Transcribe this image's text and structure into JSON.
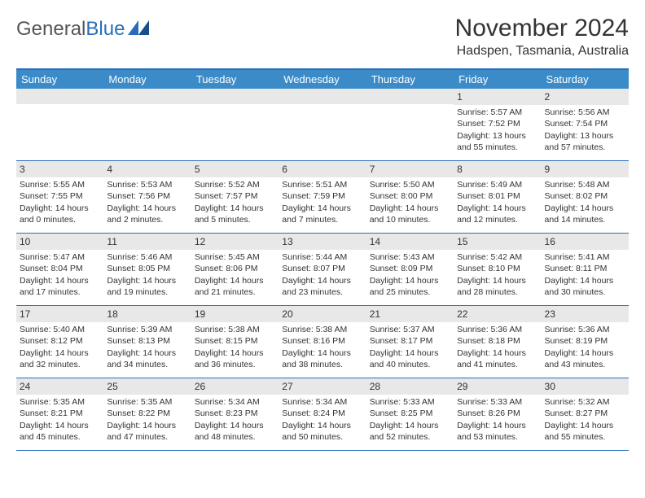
{
  "logo": {
    "word1": "General",
    "word2": "Blue"
  },
  "title": "November 2024",
  "location": "Hadspen, Tasmania, Australia",
  "colors": {
    "header_bar": "#3b8bc9",
    "border": "#2a6ebb",
    "daynum_bg": "#e8e8e8",
    "text": "#333333"
  },
  "weekdays": [
    "Sunday",
    "Monday",
    "Tuesday",
    "Wednesday",
    "Thursday",
    "Friday",
    "Saturday"
  ],
  "weeks": [
    [
      {
        "empty": true
      },
      {
        "empty": true
      },
      {
        "empty": true
      },
      {
        "empty": true
      },
      {
        "empty": true
      },
      {
        "day": "1",
        "sunrise": "5:57 AM",
        "sunset": "7:52 PM",
        "daylight": "13 hours and 55 minutes."
      },
      {
        "day": "2",
        "sunrise": "5:56 AM",
        "sunset": "7:54 PM",
        "daylight": "13 hours and 57 minutes."
      }
    ],
    [
      {
        "day": "3",
        "sunrise": "5:55 AM",
        "sunset": "7:55 PM",
        "daylight": "14 hours and 0 minutes."
      },
      {
        "day": "4",
        "sunrise": "5:53 AM",
        "sunset": "7:56 PM",
        "daylight": "14 hours and 2 minutes."
      },
      {
        "day": "5",
        "sunrise": "5:52 AM",
        "sunset": "7:57 PM",
        "daylight": "14 hours and 5 minutes."
      },
      {
        "day": "6",
        "sunrise": "5:51 AM",
        "sunset": "7:59 PM",
        "daylight": "14 hours and 7 minutes."
      },
      {
        "day": "7",
        "sunrise": "5:50 AM",
        "sunset": "8:00 PM",
        "daylight": "14 hours and 10 minutes."
      },
      {
        "day": "8",
        "sunrise": "5:49 AM",
        "sunset": "8:01 PM",
        "daylight": "14 hours and 12 minutes."
      },
      {
        "day": "9",
        "sunrise": "5:48 AM",
        "sunset": "8:02 PM",
        "daylight": "14 hours and 14 minutes."
      }
    ],
    [
      {
        "day": "10",
        "sunrise": "5:47 AM",
        "sunset": "8:04 PM",
        "daylight": "14 hours and 17 minutes."
      },
      {
        "day": "11",
        "sunrise": "5:46 AM",
        "sunset": "8:05 PM",
        "daylight": "14 hours and 19 minutes."
      },
      {
        "day": "12",
        "sunrise": "5:45 AM",
        "sunset": "8:06 PM",
        "daylight": "14 hours and 21 minutes."
      },
      {
        "day": "13",
        "sunrise": "5:44 AM",
        "sunset": "8:07 PM",
        "daylight": "14 hours and 23 minutes."
      },
      {
        "day": "14",
        "sunrise": "5:43 AM",
        "sunset": "8:09 PM",
        "daylight": "14 hours and 25 minutes."
      },
      {
        "day": "15",
        "sunrise": "5:42 AM",
        "sunset": "8:10 PM",
        "daylight": "14 hours and 28 minutes."
      },
      {
        "day": "16",
        "sunrise": "5:41 AM",
        "sunset": "8:11 PM",
        "daylight": "14 hours and 30 minutes."
      }
    ],
    [
      {
        "day": "17",
        "sunrise": "5:40 AM",
        "sunset": "8:12 PM",
        "daylight": "14 hours and 32 minutes."
      },
      {
        "day": "18",
        "sunrise": "5:39 AM",
        "sunset": "8:13 PM",
        "daylight": "14 hours and 34 minutes."
      },
      {
        "day": "19",
        "sunrise": "5:38 AM",
        "sunset": "8:15 PM",
        "daylight": "14 hours and 36 minutes."
      },
      {
        "day": "20",
        "sunrise": "5:38 AM",
        "sunset": "8:16 PM",
        "daylight": "14 hours and 38 minutes."
      },
      {
        "day": "21",
        "sunrise": "5:37 AM",
        "sunset": "8:17 PM",
        "daylight": "14 hours and 40 minutes."
      },
      {
        "day": "22",
        "sunrise": "5:36 AM",
        "sunset": "8:18 PM",
        "daylight": "14 hours and 41 minutes."
      },
      {
        "day": "23",
        "sunrise": "5:36 AM",
        "sunset": "8:19 PM",
        "daylight": "14 hours and 43 minutes."
      }
    ],
    [
      {
        "day": "24",
        "sunrise": "5:35 AM",
        "sunset": "8:21 PM",
        "daylight": "14 hours and 45 minutes."
      },
      {
        "day": "25",
        "sunrise": "5:35 AM",
        "sunset": "8:22 PM",
        "daylight": "14 hours and 47 minutes."
      },
      {
        "day": "26",
        "sunrise": "5:34 AM",
        "sunset": "8:23 PM",
        "daylight": "14 hours and 48 minutes."
      },
      {
        "day": "27",
        "sunrise": "5:34 AM",
        "sunset": "8:24 PM",
        "daylight": "14 hours and 50 minutes."
      },
      {
        "day": "28",
        "sunrise": "5:33 AM",
        "sunset": "8:25 PM",
        "daylight": "14 hours and 52 minutes."
      },
      {
        "day": "29",
        "sunrise": "5:33 AM",
        "sunset": "8:26 PM",
        "daylight": "14 hours and 53 minutes."
      },
      {
        "day": "30",
        "sunrise": "5:32 AM",
        "sunset": "8:27 PM",
        "daylight": "14 hours and 55 minutes."
      }
    ]
  ],
  "labels": {
    "sunrise_prefix": "Sunrise: ",
    "sunset_prefix": "Sunset: ",
    "daylight_prefix": "Daylight: "
  }
}
